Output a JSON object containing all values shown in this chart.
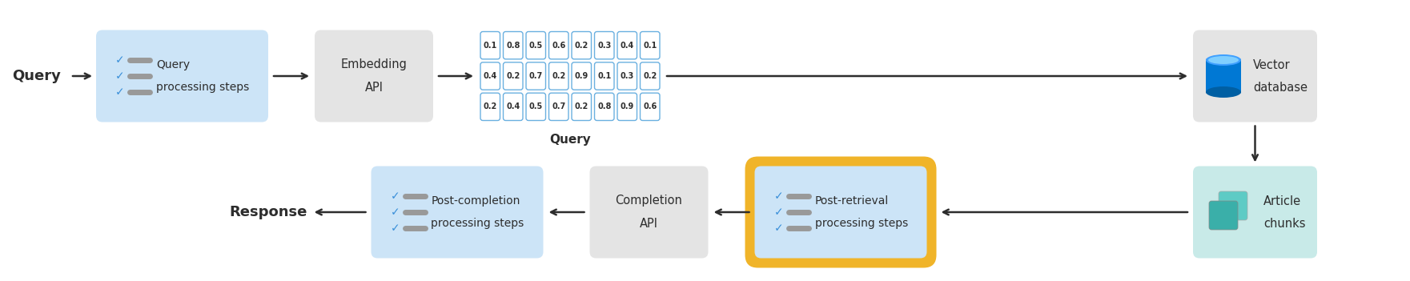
{
  "fig_width": 17.61,
  "fig_height": 3.51,
  "bg_color": "#ffffff",
  "light_blue": "#cce4f7",
  "light_gray": "#e4e4e4",
  "light_teal": "#c8eae8",
  "gold": "#f0b429",
  "blue_dark": "#0078d4",
  "blue_light_cyl": "#40a0ff",
  "blue_top_cyl": "#80cfff",
  "teal_icon1": "#3aafa9",
  "teal_icon2": "#5ecbc5",
  "arrow_color": "#2d2d2d",
  "text_color": "#2d2d2d",
  "check_color": "#3a8fd9",
  "gray_bar": "#999999",
  "matrix_border": "#6ab0e0",
  "matrix_bg": "#ffffff",
  "query_label": "Query",
  "response_label": "Response",
  "query_label_below": "Query",
  "matrix_values": [
    [
      "0.1",
      "0.8",
      "0.5",
      "0.6",
      "0.2",
      "0.3",
      "0.4",
      "0.1"
    ],
    [
      "0.4",
      "0.2",
      "0.7",
      "0.2",
      "0.9",
      "0.1",
      "0.3",
      "0.2"
    ],
    [
      "0.2",
      "0.4",
      "0.5",
      "0.7",
      "0.2",
      "0.8",
      "0.9",
      "0.6"
    ]
  ]
}
